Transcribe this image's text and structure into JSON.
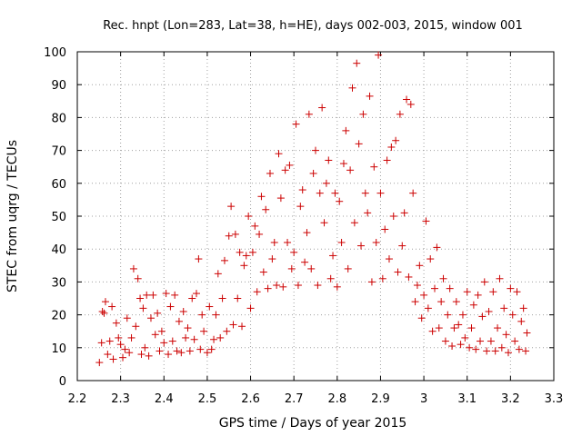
{
  "chart_data": {
    "type": "scatter",
    "title": "Rec. hnpt (Lon=283, Lat=38, h=HE), days 002-003, 2015, window 001",
    "xlabel": "GPS time / Days of year 2015",
    "ylabel": "STEC from uqrg / TECUs",
    "xlim": [
      2.2,
      3.3
    ],
    "ylim": [
      0,
      100
    ],
    "xticks": [
      "2.2",
      "2.3",
      "2.4",
      "2.5",
      "2.6",
      "2.7",
      "2.8",
      "2.9",
      "3",
      "3.1",
      "3.2",
      "3.3"
    ],
    "yticks": [
      "0",
      "10",
      "20",
      "30",
      "40",
      "50",
      "60",
      "70",
      "80",
      "90",
      "100"
    ],
    "grid": true,
    "legend": "none",
    "marker": "+",
    "color": "#cc0000",
    "series": [
      {
        "name": "STEC",
        "points": [
          [
            2.251,
            5.5
          ],
          [
            2.256,
            11.5
          ],
          [
            2.258,
            21
          ],
          [
            2.262,
            20.5
          ],
          [
            2.265,
            24
          ],
          [
            2.27,
            8
          ],
          [
            2.275,
            12
          ],
          [
            2.28,
            22.5
          ],
          [
            2.283,
            6.5
          ],
          [
            2.29,
            17.5
          ],
          [
            2.295,
            13
          ],
          [
            2.3,
            11
          ],
          [
            2.305,
            7
          ],
          [
            2.31,
            9.5
          ],
          [
            2.315,
            19
          ],
          [
            2.32,
            8.5
          ],
          [
            2.325,
            13
          ],
          [
            2.33,
            34
          ],
          [
            2.335,
            16.5
          ],
          [
            2.34,
            31
          ],
          [
            2.345,
            25
          ],
          [
            2.348,
            8
          ],
          [
            2.352,
            22
          ],
          [
            2.356,
            10
          ],
          [
            2.36,
            26
          ],
          [
            2.365,
            7.5
          ],
          [
            2.37,
            19
          ],
          [
            2.375,
            26
          ],
          [
            2.38,
            14
          ],
          [
            2.385,
            20.5
          ],
          [
            2.39,
            9
          ],
          [
            2.395,
            15
          ],
          [
            2.4,
            11.5
          ],
          [
            2.405,
            26.5
          ],
          [
            2.41,
            8
          ],
          [
            2.415,
            22.5
          ],
          [
            2.42,
            12
          ],
          [
            2.425,
            26
          ],
          [
            2.43,
            9
          ],
          [
            2.435,
            18
          ],
          [
            2.44,
            8.5
          ],
          [
            2.445,
            21
          ],
          [
            2.45,
            13
          ],
          [
            2.455,
            16
          ],
          [
            2.46,
            9
          ],
          [
            2.465,
            25
          ],
          [
            2.47,
            12.5
          ],
          [
            2.475,
            26.5
          ],
          [
            2.48,
            37
          ],
          [
            2.484,
            9.5
          ],
          [
            2.488,
            20
          ],
          [
            2.492,
            15
          ],
          [
            2.5,
            8.5
          ],
          [
            2.505,
            22.5
          ],
          [
            2.51,
            9.5
          ],
          [
            2.515,
            12.5
          ],
          [
            2.52,
            20
          ],
          [
            2.525,
            32.5
          ],
          [
            2.53,
            13
          ],
          [
            2.535,
            25
          ],
          [
            2.54,
            36.5
          ],
          [
            2.545,
            15
          ],
          [
            2.55,
            44
          ],
          [
            2.555,
            53
          ],
          [
            2.56,
            17
          ],
          [
            2.565,
            44.5
          ],
          [
            2.57,
            25
          ],
          [
            2.575,
            39
          ],
          [
            2.58,
            16.5
          ],
          [
            2.585,
            35
          ],
          [
            2.59,
            38
          ],
          [
            2.595,
            50
          ],
          [
            2.6,
            22
          ],
          [
            2.605,
            39
          ],
          [
            2.61,
            47
          ],
          [
            2.615,
            27
          ],
          [
            2.62,
            44.5
          ],
          [
            2.625,
            56
          ],
          [
            2.63,
            33
          ],
          [
            2.635,
            52
          ],
          [
            2.64,
            28
          ],
          [
            2.645,
            63
          ],
          [
            2.65,
            37
          ],
          [
            2.655,
            42
          ],
          [
            2.66,
            29
          ],
          [
            2.665,
            69
          ],
          [
            2.67,
            55.5
          ],
          [
            2.675,
            28.5
          ],
          [
            2.68,
            64
          ],
          [
            2.685,
            42
          ],
          [
            2.69,
            65.5
          ],
          [
            2.695,
            34
          ],
          [
            2.7,
            39
          ],
          [
            2.705,
            78
          ],
          [
            2.71,
            29
          ],
          [
            2.715,
            53
          ],
          [
            2.72,
            58
          ],
          [
            2.725,
            36
          ],
          [
            2.73,
            45
          ],
          [
            2.735,
            81
          ],
          [
            2.74,
            34
          ],
          [
            2.745,
            63
          ],
          [
            2.75,
            70
          ],
          [
            2.755,
            29
          ],
          [
            2.76,
            57
          ],
          [
            2.765,
            83
          ],
          [
            2.77,
            48
          ],
          [
            2.775,
            60
          ],
          [
            2.78,
            67
          ],
          [
            2.785,
            31
          ],
          [
            2.79,
            38
          ],
          [
            2.795,
            57
          ],
          [
            2.8,
            28.5
          ],
          [
            2.805,
            54.5
          ],
          [
            2.81,
            42
          ],
          [
            2.815,
            66
          ],
          [
            2.82,
            76
          ],
          [
            2.825,
            34
          ],
          [
            2.83,
            64
          ],
          [
            2.835,
            89
          ],
          [
            2.84,
            48
          ],
          [
            2.845,
            96.5
          ],
          [
            2.85,
            72
          ],
          [
            2.855,
            41
          ],
          [
            2.86,
            81
          ],
          [
            2.865,
            57
          ],
          [
            2.87,
            51
          ],
          [
            2.875,
            86.5
          ],
          [
            2.88,
            30
          ],
          [
            2.885,
            65
          ],
          [
            2.89,
            42
          ],
          [
            2.895,
            99
          ],
          [
            2.9,
            57
          ],
          [
            2.905,
            31
          ],
          [
            2.91,
            46
          ],
          [
            2.915,
            67
          ],
          [
            2.92,
            37
          ],
          [
            2.925,
            71
          ],
          [
            2.93,
            50
          ],
          [
            2.935,
            73
          ],
          [
            2.94,
            33
          ],
          [
            2.945,
            81
          ],
          [
            2.95,
            41
          ],
          [
            2.955,
            51
          ],
          [
            2.96,
            85.5
          ],
          [
            2.965,
            31.5
          ],
          [
            2.97,
            84
          ],
          [
            2.975,
            57
          ],
          [
            2.98,
            24
          ],
          [
            2.985,
            29
          ],
          [
            2.99,
            35
          ],
          [
            2.995,
            19
          ],
          [
            3.0,
            26
          ],
          [
            3.005,
            48.5
          ],
          [
            3.01,
            22
          ],
          [
            3.015,
            37
          ],
          [
            3.02,
            15
          ],
          [
            3.025,
            28
          ],
          [
            3.03,
            40.5
          ],
          [
            3.035,
            16
          ],
          [
            3.04,
            24
          ],
          [
            3.045,
            31
          ],
          [
            3.05,
            12
          ],
          [
            3.055,
            20
          ],
          [
            3.06,
            28
          ],
          [
            3.065,
            10.5
          ],
          [
            3.07,
            16
          ],
          [
            3.075,
            24
          ],
          [
            3.08,
            17
          ],
          [
            3.085,
            11
          ],
          [
            3.09,
            20
          ],
          [
            3.095,
            13
          ],
          [
            3.1,
            27
          ],
          [
            3.105,
            10
          ],
          [
            3.11,
            16
          ],
          [
            3.115,
            23
          ],
          [
            3.12,
            9.5
          ],
          [
            3.125,
            26
          ],
          [
            3.13,
            12
          ],
          [
            3.135,
            19.5
          ],
          [
            3.14,
            30
          ],
          [
            3.145,
            9
          ],
          [
            3.15,
            21
          ],
          [
            3.155,
            12
          ],
          [
            3.16,
            27
          ],
          [
            3.165,
            9
          ],
          [
            3.17,
            16
          ],
          [
            3.175,
            31
          ],
          [
            3.18,
            10
          ],
          [
            3.185,
            22
          ],
          [
            3.19,
            14
          ],
          [
            3.195,
            8.5
          ],
          [
            3.2,
            28
          ],
          [
            3.205,
            20
          ],
          [
            3.21,
            12
          ],
          [
            3.215,
            27
          ],
          [
            3.22,
            9.5
          ],
          [
            3.225,
            18
          ],
          [
            3.23,
            22
          ],
          [
            3.235,
            9
          ],
          [
            3.238,
            14.5
          ]
        ]
      }
    ]
  }
}
